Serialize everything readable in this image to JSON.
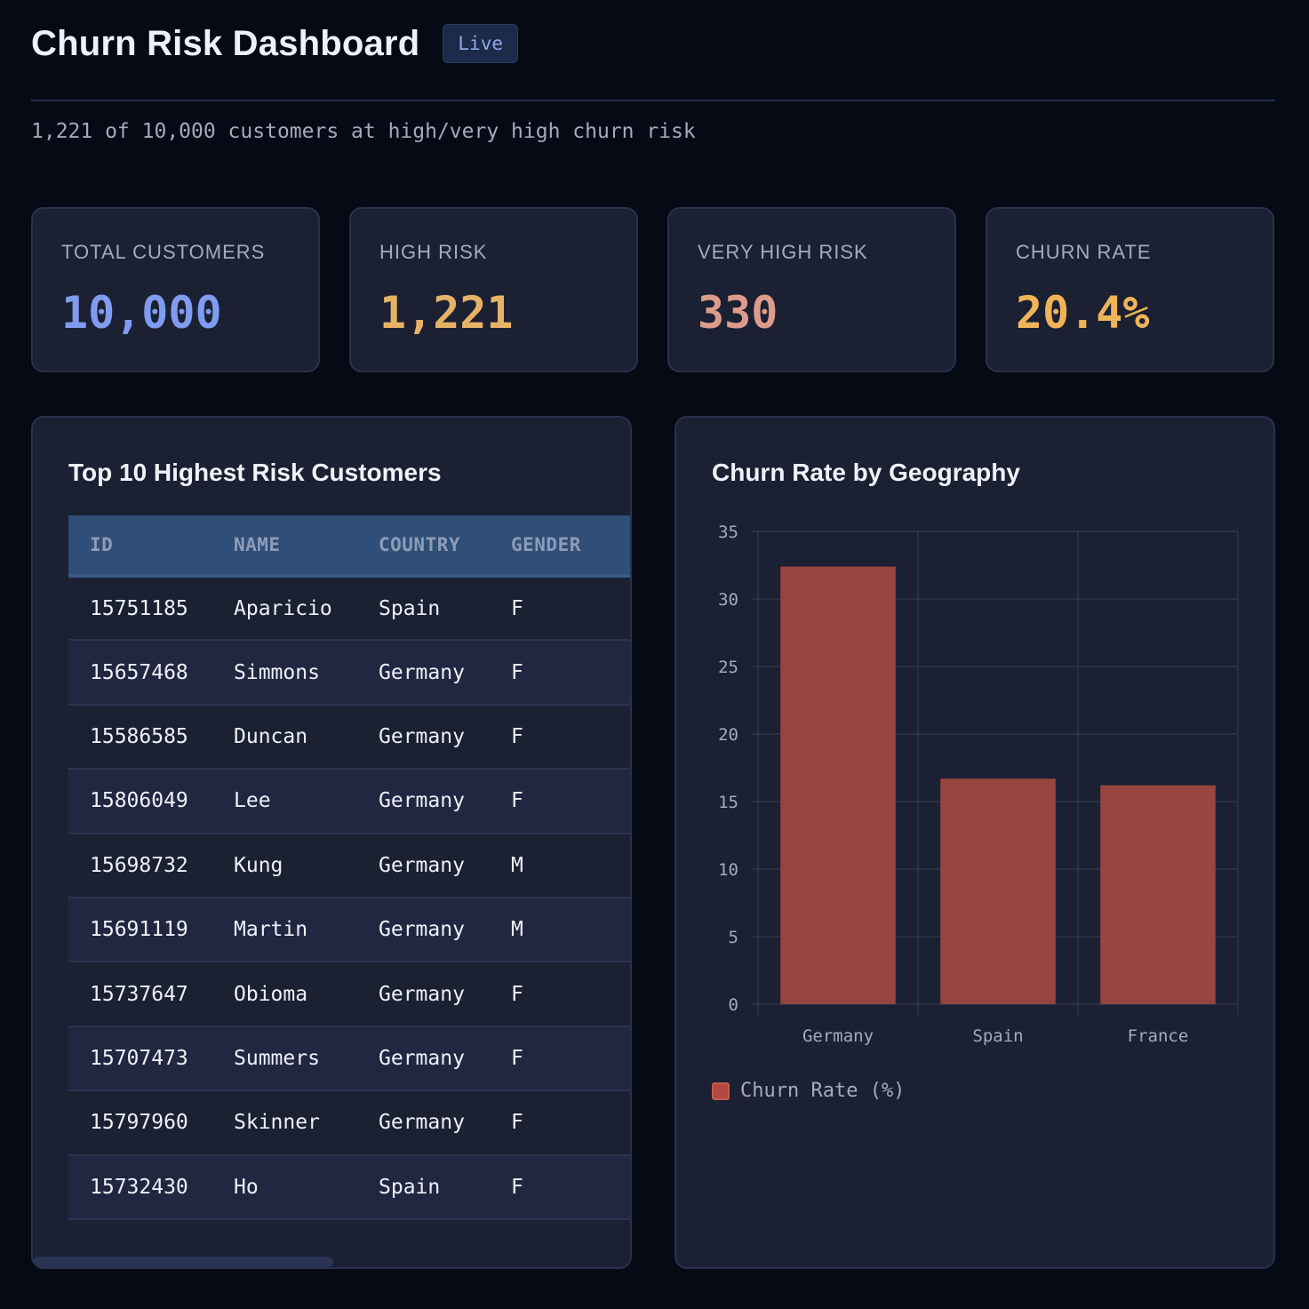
{
  "header": {
    "title": "Churn Risk Dashboard",
    "badge": "Live",
    "subtitle": "1,221 of 10,000 customers at high/very high churn risk"
  },
  "kpis": [
    {
      "label": "TOTAL CUSTOMERS",
      "value": "10,000",
      "color": "#7f9cf0"
    },
    {
      "label": "HIGH RISK",
      "value": "1,221",
      "color": "#e6b366"
    },
    {
      "label": "VERY HIGH RISK",
      "value": "330",
      "color": "#dd9b8c"
    },
    {
      "label": "CHURN RATE",
      "value": "20.4%",
      "color": "#f0b458"
    }
  ],
  "table": {
    "title": "Top 10 Highest Risk Customers",
    "columns": [
      "ID",
      "NAME",
      "COUNTRY",
      "GENDER"
    ],
    "rows": [
      [
        "15751185",
        "Aparicio",
        "Spain",
        "F"
      ],
      [
        "15657468",
        "Simmons",
        "Germany",
        "F"
      ],
      [
        "15586585",
        "Duncan",
        "Germany",
        "F"
      ],
      [
        "15806049",
        "Lee",
        "Germany",
        "F"
      ],
      [
        "15698732",
        "Kung",
        "Germany",
        "M"
      ],
      [
        "15691119",
        "Martin",
        "Germany",
        "M"
      ],
      [
        "15737647",
        "Obioma",
        "Germany",
        "F"
      ],
      [
        "15707473",
        "Summers",
        "Germany",
        "F"
      ],
      [
        "15797960",
        "Skinner",
        "Germany",
        "F"
      ],
      [
        "15732430",
        "Ho",
        "Spain",
        "F"
      ]
    ]
  },
  "chart": {
    "title": "Churn Rate by Geography"
  },
  "chart_data": {
    "type": "bar",
    "categories": [
      "Germany",
      "Spain",
      "France"
    ],
    "series": [
      {
        "name": "Churn Rate (%)",
        "values": [
          32.4,
          16.7,
          16.2
        ],
        "color": "#96453f"
      }
    ],
    "ylim": [
      0,
      35
    ],
    "yticks": [
      0,
      5,
      10,
      15,
      20,
      25,
      30,
      35
    ],
    "grid": true,
    "legend": "bottom-left"
  }
}
